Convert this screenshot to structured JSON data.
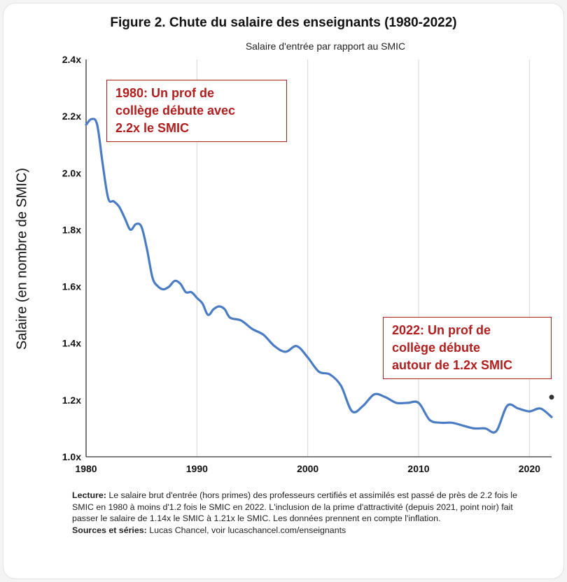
{
  "chart_data": {
    "type": "line",
    "title": "Figure 2. Chute du salaire des enseignants (1980-2022)",
    "subtitle": "Salaire d'entrée par rapport au SMIC",
    "ylabel": "Salaire (en nombre de SMIC)",
    "xlabel": "",
    "xlim": [
      1980,
      2022
    ],
    "ylim": [
      1.0,
      2.4
    ],
    "x_ticks": [
      1980,
      1990,
      2000,
      2010,
      2020
    ],
    "y_ticks": [
      1.0,
      1.2,
      1.4,
      1.6,
      1.8,
      2.0,
      2.2,
      2.4
    ],
    "y_tick_labels": [
      "1.0x",
      "1.2x",
      "1.4x",
      "1.6x",
      "1.8x",
      "2.0x",
      "2.2x",
      "2.4x"
    ],
    "grid": "vertical",
    "line_color": "#4a7cc4",
    "series": [
      {
        "x": [
          1980,
          1980.5,
          1981,
          1981.5,
          1982,
          1982.5,
          1983,
          1983.5,
          1984,
          1984.5,
          1985,
          1985.5,
          1986,
          1986.5,
          1987,
          1987.5,
          1988,
          1988.5,
          1989,
          1989.5,
          1990,
          1990.5,
          1991,
          1991.5,
          1992,
          1992.5,
          1993,
          1994,
          1995,
          1996,
          1997,
          1998,
          1999,
          2000,
          2001,
          2002,
          2003,
          2004,
          2005,
          2006,
          2007,
          2008,
          2009,
          2010,
          2011,
          2012,
          2013,
          2014,
          2015,
          2016,
          2017,
          2018,
          2019,
          2020,
          2021,
          2022
        ],
        "y": [
          2.17,
          2.19,
          2.17,
          2.03,
          1.91,
          1.9,
          1.88,
          1.84,
          1.8,
          1.82,
          1.81,
          1.73,
          1.63,
          1.6,
          1.59,
          1.6,
          1.62,
          1.61,
          1.58,
          1.58,
          1.56,
          1.54,
          1.5,
          1.52,
          1.53,
          1.52,
          1.49,
          1.48,
          1.45,
          1.43,
          1.39,
          1.37,
          1.39,
          1.35,
          1.3,
          1.29,
          1.25,
          1.16,
          1.18,
          1.22,
          1.21,
          1.19,
          1.19,
          1.19,
          1.13,
          1.12,
          1.12,
          1.11,
          1.1,
          1.1,
          1.09,
          1.18,
          1.17,
          1.16,
          1.17,
          1.14
        ]
      }
    ],
    "extra_points": [
      {
        "x": 2022,
        "y": 1.21,
        "color": "#333333"
      }
    ]
  },
  "annotations": {
    "a1980": "1980: Un prof de\ncollège débute avec\n2.2x le SMIC",
    "a2022": "2022: Un prof de\ncollège débute\nautour de 1.2x SMIC",
    "color": "#b01e1e"
  },
  "caption": {
    "lecture_label": "Lecture:",
    "lecture_text": " Le salaire brut d'entrée (hors primes) des professeurs certifiés et assimilés est passé de près de 2.2 fois le SMIC en 1980 à moins d'1.2 fois le SMIC en 2022. L'inclusion de la prime d'attractivité (depuis 2021, point noir) fait passer le salaire de 1.14x le SMIC à 1.21x le SMIC. Les données prennent en compte l'inflation.",
    "sources_label": "Sources et séries:",
    "sources_text": " Lucas Chancel, voir lucaschancel.com/enseignants"
  }
}
